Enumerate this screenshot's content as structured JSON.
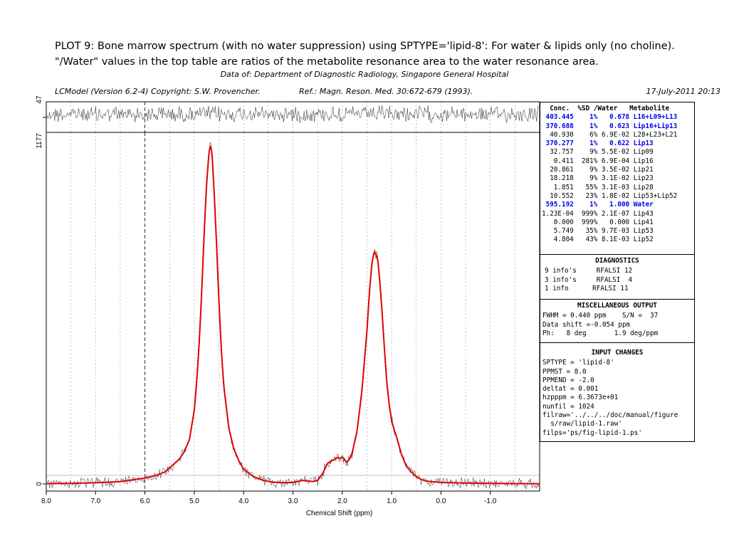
{
  "header": {
    "line1": "PLOT 9:  Bone marrow spectrum (with no water suppression) using SPTYPE='lipid-8':  For water & lipids only (no choline).",
    "line2": "\"/Water\" values in the top table are ratios of the metabolite resonance area to the water resonance area.",
    "data_of": "Data of: Department of Diagnostic Radiology, Singapore General Hospital",
    "version": "LCModel (Version 6.2-4) Copyright: S.W. Provencher.",
    "ref": "Ref.: Magn. Reson. Med. 30:672-679 (1993).",
    "date": "17-July-2011  20:13"
  },
  "chart_data": {
    "type": "line",
    "xlabel": "Chemical Shift (ppm)",
    "xlim": [
      8.0,
      -2.0
    ],
    "x_reversed": true,
    "xticks": [
      "8.0",
      "7.0",
      "6.0",
      "5.0",
      "4.0",
      "3.0",
      "2.0",
      "1.0",
      "0.0",
      "-1.0"
    ],
    "xtick_values": [
      8,
      7,
      6,
      5,
      4,
      3,
      2,
      1,
      0,
      -1
    ],
    "residual_label": "47",
    "ylabel_top": "1177",
    "ylabel_zero": "0",
    "ylim": [
      0,
      1177
    ],
    "grid": "vertical dashed",
    "series": [
      {
        "role": "fit",
        "color": "#e00000",
        "x": [
          8.0,
          7.5,
          7.0,
          6.5,
          6.0,
          5.8,
          5.6,
          5.5,
          5.4,
          5.3,
          5.2,
          5.1,
          5.0,
          4.95,
          4.9,
          4.85,
          4.8,
          4.75,
          4.7,
          4.67,
          4.64,
          4.6,
          4.55,
          4.5,
          4.45,
          4.4,
          4.3,
          4.2,
          4.1,
          4.0,
          3.8,
          3.6,
          3.4,
          3.2,
          3.0,
          2.8,
          2.7,
          2.6,
          2.5,
          2.4,
          2.3,
          2.2,
          2.1,
          2.05,
          2.0,
          1.95,
          1.9,
          1.85,
          1.8,
          1.7,
          1.6,
          1.5,
          1.45,
          1.4,
          1.35,
          1.3,
          1.28,
          1.25,
          1.2,
          1.15,
          1.1,
          1.05,
          1.0,
          0.95,
          0.9,
          0.85,
          0.8,
          0.7,
          0.6,
          0.5,
          0.4,
          0.3,
          0.2,
          0.0,
          -0.5,
          -1.0,
          -1.5,
          -2.0
        ],
        "y": [
          1,
          2,
          4,
          8,
          20,
          28,
          40,
          55,
          70,
          85,
          110,
          150,
          250,
          350,
          480,
          650,
          850,
          1020,
          1130,
          1150,
          1120,
          1000,
          820,
          620,
          450,
          330,
          190,
          120,
          80,
          50,
          25,
          12,
          6,
          4,
          5,
          12,
          10,
          8,
          12,
          35,
          70,
          80,
          90,
          86,
          92,
          80,
          75,
          85,
          105,
          180,
          320,
          520,
          650,
          750,
          790,
          772,
          760,
          710,
          600,
          470,
          350,
          270,
          215,
          185,
          160,
          130,
          100,
          60,
          40,
          25,
          15,
          10,
          8,
          5,
          3,
          2,
          1,
          1
        ]
      }
    ],
    "residual_style": "noise strip"
  },
  "table": {
    "header": "  Conc.  %SD /Water   Metabolite",
    "rows": [
      {
        "conc": "403.445",
        "sd": "1%",
        "water": "0.678",
        "name": "L16+L09+L13",
        "hl": true
      },
      {
        "conc": "370.688",
        "sd": "1%",
        "water": "0.623",
        "name": "Lip16+Lip13",
        "hl": true
      },
      {
        "conc": "40.930",
        "sd": "6%",
        "water": "6.9E-02",
        "name": "L28+L23+L21",
        "hl": false
      },
      {
        "conc": "370.277",
        "sd": "1%",
        "water": "0.622",
        "name": "Lip13",
        "hl": true
      },
      {
        "conc": "32.757",
        "sd": "9%",
        "water": "5.5E-02",
        "name": "Lip09",
        "hl": false
      },
      {
        "conc": "0.411",
        "sd": "281%",
        "water": "6.9E-04",
        "name": "Lip16",
        "hl": false
      },
      {
        "conc": "20.861",
        "sd": "9%",
        "water": "3.5E-02",
        "name": "Lip21",
        "hl": false
      },
      {
        "conc": "18.218",
        "sd": "9%",
        "water": "3.1E-02",
        "name": "Lip23",
        "hl": false
      },
      {
        "conc": "1.851",
        "sd": "55%",
        "water": "3.1E-03",
        "name": "Lip28",
        "hl": false
      },
      {
        "conc": "10.552",
        "sd": "23%",
        "water": "1.8E-02",
        "name": "Lip53+Lip52",
        "hl": false
      },
      {
        "conc": "595.192",
        "sd": "1%",
        "water": "1.000",
        "name": "Water",
        "hl": true
      },
      {
        "conc": "1.23E-04",
        "sd": "999%",
        "water": "2.1E-07",
        "name": "Lip43",
        "hl": false
      },
      {
        "conc": "0.000",
        "sd": "999%",
        "water": "0.000",
        "name": "Lip41",
        "hl": false
      },
      {
        "conc": "5.749",
        "sd": "35%",
        "water": "9.7E-03",
        "name": "Lip53",
        "hl": false
      },
      {
        "conc": "4.804",
        "sd": "43%",
        "water": "8.1E-03",
        "name": "Lip52",
        "hl": false
      }
    ]
  },
  "diagnostics": {
    "title": "DIAGNOSTICS",
    "lines": [
      "9 info's     RFALSI 12",
      "3 info's     RFALSI  4",
      "1 info      RFALSI 11"
    ]
  },
  "misc": {
    "title": "MISCELLANEOUS OUTPUT",
    "lines": [
      "FWHM = 0.440 ppm    S/N =  37",
      "Data shift =-0.054 ppm",
      "Ph:   8 deg       1.9 deg/ppm"
    ]
  },
  "input_changes": {
    "title": "INPUT CHANGES",
    "lines": [
      "SPTYPE = 'lipid-8'",
      "PPMST = 8.0",
      "PPMEND = -2.0",
      "deltat = 0.001",
      "hzpppm = 6.3673e+01",
      "nunfil = 1024",
      "filraw='../../../doc/manual/figure",
      "  s/raw/lipid-1.raw'",
      "filps='ps/fig-lipid-1.ps'"
    ]
  }
}
